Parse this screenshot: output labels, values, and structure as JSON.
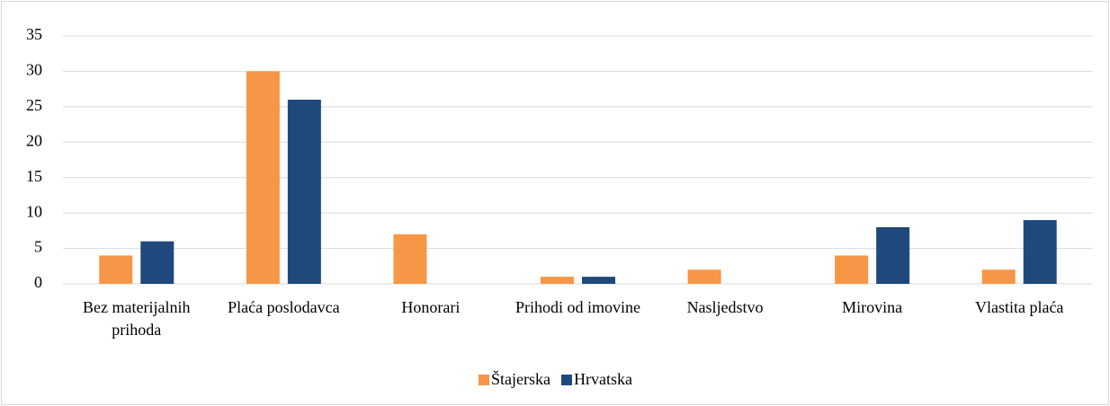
{
  "chart_data": {
    "type": "bar",
    "categories": [
      "Bez materijalnih prihoda",
      "Plaća poslodavca",
      "Honorari",
      "Prihodi od imovine",
      "Nasljedstvo",
      "Mirovina",
      "Vlastita plaća"
    ],
    "series": [
      {
        "name": "Štajerska",
        "color": "#f79646",
        "values": [
          4,
          30,
          7,
          1,
          2,
          4,
          2
        ]
      },
      {
        "name": "Hrvatska",
        "color": "#1f497d",
        "values": [
          6,
          26,
          0,
          1,
          0,
          8,
          9
        ]
      }
    ],
    "ylim": [
      0,
      35
    ],
    "yticks": [
      0,
      5,
      10,
      15,
      20,
      25,
      30,
      35
    ],
    "grid": true,
    "legend": "bottom"
  }
}
